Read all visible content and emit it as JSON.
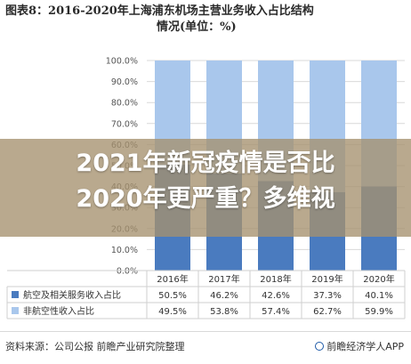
{
  "title": {
    "line1": "图表8：2016-2020年上海浦东机场主营业务收入占比结构",
    "line2": "情况(单位：%)"
  },
  "headline": {
    "line1": "2021年新冠疫情是否比",
    "line2": "2020年更严重？多维视"
  },
  "footer": {
    "source": "资料来源：公司公报 前瞻产业研究院整理",
    "brand": "前瞻经济学人APP"
  },
  "colors": {
    "series_aero": "#4a7bbf",
    "series_nonaero": "#a9c7ec",
    "overlay": "#a5916e"
  },
  "chart_data": {
    "type": "bar",
    "stacked": true,
    "title": "图表8：2016-2020年上海浦东机场主营业务收入占比结构情况(单位：%)",
    "categories": [
      "2016年",
      "2017年",
      "2018年",
      "2019年",
      "2020年"
    ],
    "ylim": [
      0,
      100
    ],
    "yticks": [
      "100.0%",
      "90.0%",
      "80.0%",
      "70.0%",
      "60.0%",
      "50.0%",
      "40.0%",
      "30.0%",
      "20.0%",
      "10.0%",
      "0.0%"
    ],
    "ytick_values": [
      100,
      90,
      80,
      70,
      60,
      50,
      40,
      30,
      20,
      10,
      0
    ],
    "grid": true,
    "legend": "data-table-below",
    "series": [
      {
        "name": "航空及相关服务收入占比",
        "values": [
          50.5,
          46.2,
          42.6,
          37.3,
          40.1
        ],
        "labels": [
          "50.5%",
          "46.2%",
          "42.6%",
          "37.3%",
          "40.1%"
        ]
      },
      {
        "name": "非航空性收入占比",
        "values": [
          49.5,
          53.8,
          57.4,
          62.7,
          59.9
        ],
        "labels": [
          "49.5%",
          "53.8%",
          "57.4%",
          "62.7%",
          "59.9%"
        ]
      }
    ]
  }
}
